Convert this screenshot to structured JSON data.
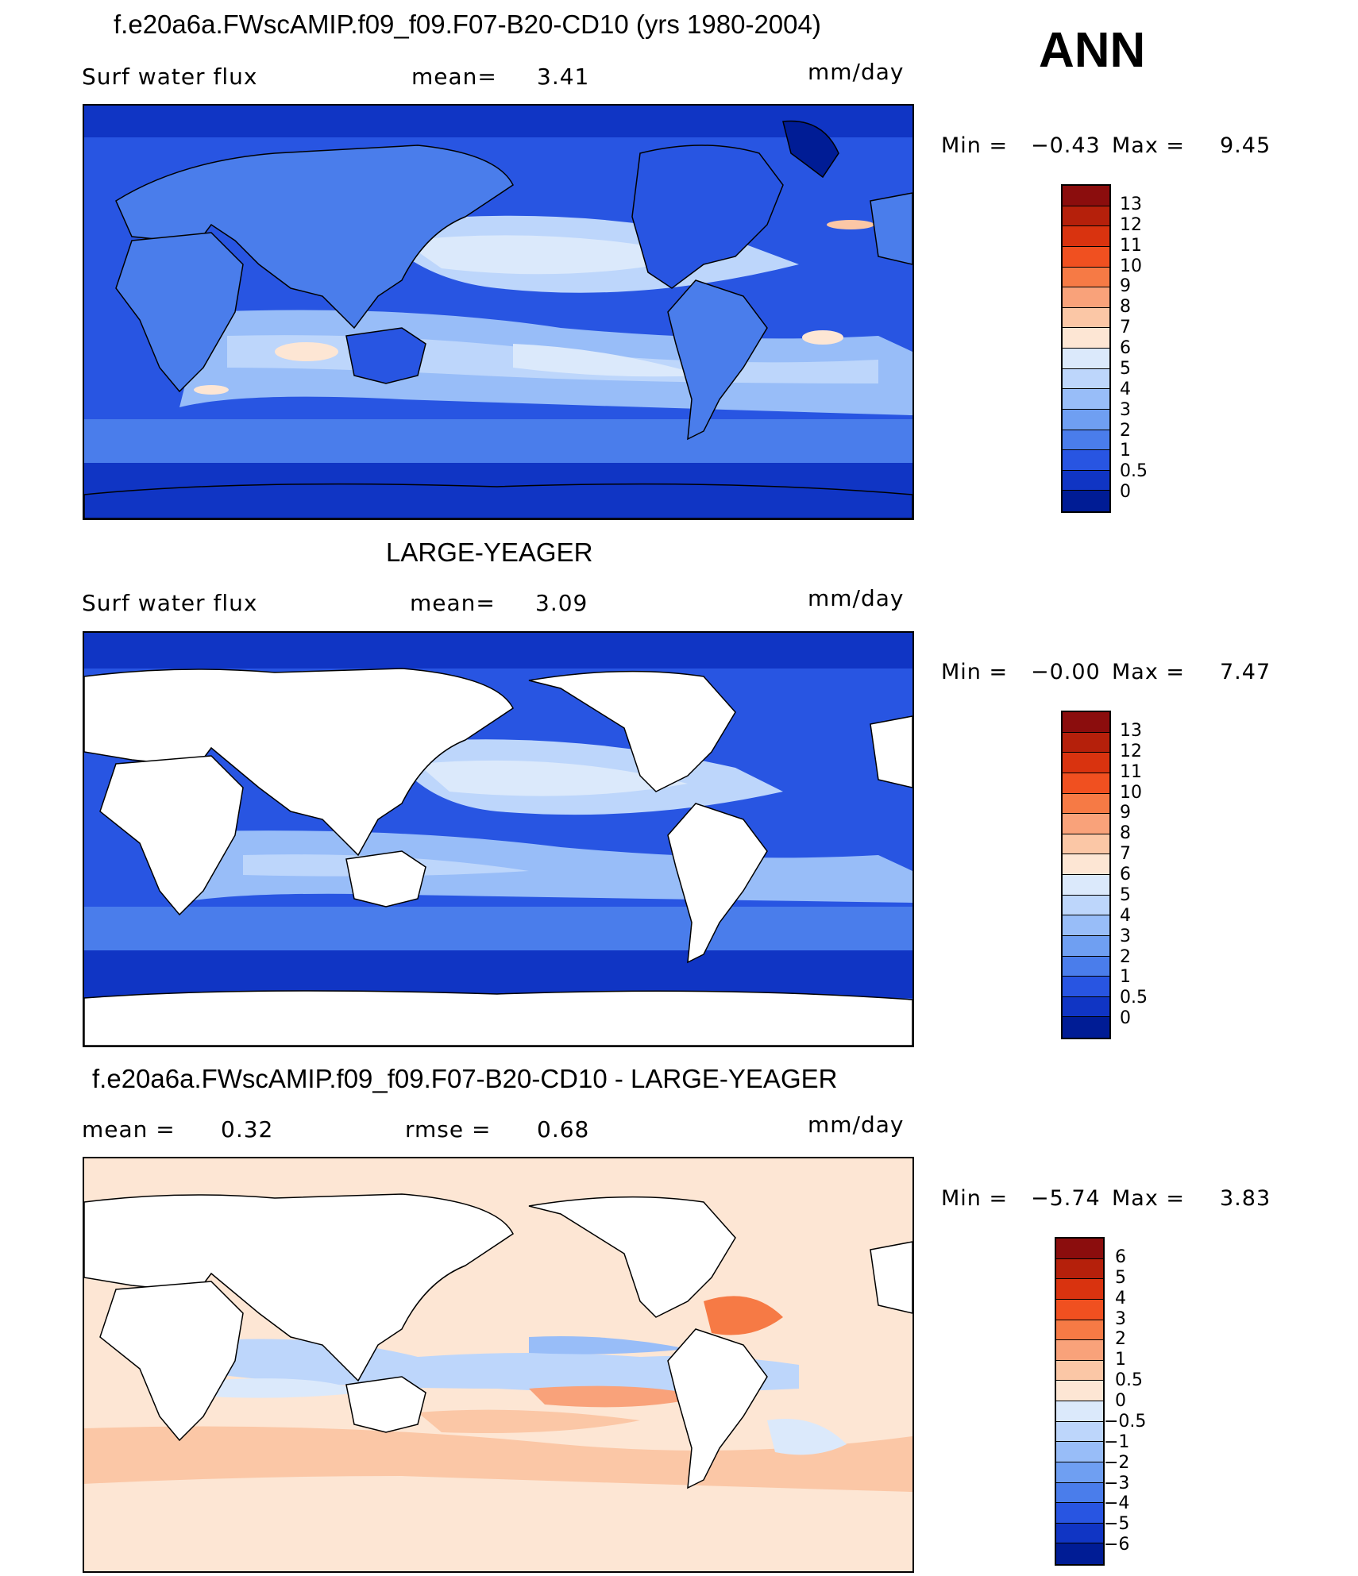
{
  "season": "ANN",
  "panels": [
    {
      "title": "f.e20a6a.FWscAMIP.f09_f09.F07-B20-CD10 (yrs 1980-2004)",
      "left_label": "Surf  water  flux",
      "stat1_label": "mean=",
      "stat1_value": "3.41",
      "stat2_label": "",
      "stat2_value": "",
      "units": "mm/day",
      "min_label": "Min  =",
      "min_value": "−0.43",
      "max_label": "Max  =",
      "max_value": "9.45",
      "map_style": "model"
    },
    {
      "title": "LARGE-YEAGER",
      "left_label": "Surf  water  flux",
      "stat1_label": "mean=",
      "stat1_value": "3.09",
      "stat2_label": "",
      "stat2_value": "",
      "units": "mm/day",
      "min_label": "Min  =",
      "min_value": "−0.00",
      "max_label": "Max  =",
      "max_value": "7.47",
      "map_style": "obs"
    },
    {
      "title": "f.e20a6a.FWscAMIP.f09_f09.F07-B20-CD10 - LARGE-YEAGER",
      "left_label": "mean  =",
      "stat1_label": "rmse  =",
      "stat1_value": "0.68",
      "stat2_label": "",
      "stat2_value": "0.32",
      "units": "mm/day",
      "min_label": "Min  =",
      "min_value": "−5.74",
      "max_label": "Max  =",
      "max_value": "3.83",
      "map_style": "diff"
    }
  ],
  "colorbar_abs": {
    "labels": [
      "13",
      "12",
      "11",
      "10",
      "9",
      "8",
      "7",
      "6",
      "5",
      "4",
      "3",
      "2",
      "1",
      "0.5",
      "0"
    ],
    "colors": [
      "#8b0d0d",
      "#b5200b",
      "#d9330f",
      "#f05020",
      "#f67a45",
      "#f9a27a",
      "#fbc7a6",
      "#fde6d4",
      "#dbe9fb",
      "#bdd6fb",
      "#98bdf8",
      "#6f9ff2",
      "#4a7deb",
      "#2855e2",
      "#1035c4",
      "#001c95"
    ]
  },
  "colorbar_diff": {
    "labels": [
      "6",
      "5",
      "4",
      "3",
      "2",
      "1",
      "0.5",
      "0",
      "−0.5",
      "−1",
      "−2",
      "−3",
      "−4",
      "−5",
      "−6"
    ],
    "colors": [
      "#8b0d0d",
      "#b5200b",
      "#d9330f",
      "#f05020",
      "#f67a45",
      "#f9a27a",
      "#fbc7a6",
      "#fde6d4",
      "#dbe9fb",
      "#bdd6fb",
      "#98bdf8",
      "#6f9ff2",
      "#4a7deb",
      "#2855e2",
      "#1035c4",
      "#001c95"
    ]
  }
}
